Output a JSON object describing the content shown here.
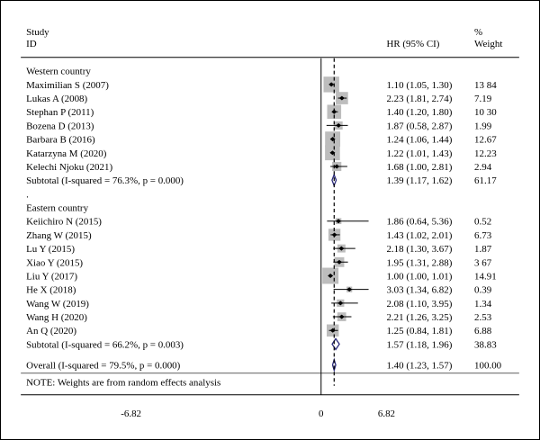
{
  "chart_data": {
    "type": "forest",
    "header": {
      "study_l1": "Study",
      "study_l2": "ID",
      "hr": "HR (95% CI)",
      "weight_l1": "%",
      "weight_l2": "Weight"
    },
    "x_axis": {
      "ticks": [
        -6.82,
        0,
        6.82
      ],
      "tick_labels": [
        "-6.82",
        "0",
        "6.82"
      ],
      "reference_line": 0
    },
    "rows": [
      {
        "kind": "group",
        "label": "Western country"
      },
      {
        "kind": "study",
        "label": "Maximilian S (2007)",
        "hr": 1.1,
        "lo": 1.05,
        "hi": 1.3,
        "hr_text": "1.10 (1.05, 1.30)",
        "weight": 13.84,
        "weight_text": "13 84"
      },
      {
        "kind": "study",
        "label": "Lukas A (2008)",
        "hr": 2.23,
        "lo": 1.81,
        "hi": 2.74,
        "hr_text": "2.23 (1.81, 2.74)",
        "weight": 7.19,
        "weight_text": "7.19"
      },
      {
        "kind": "study",
        "label": "Stephan P (2011)",
        "hr": 1.4,
        "lo": 1.2,
        "hi": 1.8,
        "hr_text": "1.40 (1.20, 1.80)",
        "weight": 10.3,
        "weight_text": "10 30"
      },
      {
        "kind": "study",
        "label": "Bozena D (2013)",
        "hr": 1.87,
        "lo": 0.58,
        "hi": 2.87,
        "hr_text": "1.87 (0.58, 2.87)",
        "weight": 1.99,
        "weight_text": "1.99"
      },
      {
        "kind": "study",
        "label": "Barbara B (2016)",
        "hr": 1.24,
        "lo": 1.06,
        "hi": 1.44,
        "hr_text": "1.24 (1.06, 1.44)",
        "weight": 12.67,
        "weight_text": "12.67"
      },
      {
        "kind": "study",
        "label": "Katarzyna M (2020)",
        "hr": 1.22,
        "lo": 1.01,
        "hi": 1.43,
        "hr_text": "1.22 (1.01, 1.43)",
        "weight": 12.23,
        "weight_text": "12.23"
      },
      {
        "kind": "study",
        "label": "Kelechi Njoku (2021)",
        "hr": 1.68,
        "lo": 1.0,
        "hi": 2.81,
        "hr_text": "1.68 (1.00, 2.81)",
        "weight": 2.94,
        "weight_text": "2.94"
      },
      {
        "kind": "subtotal",
        "label": "Subtotal (I-squared = 76.3%, p = 0.000)",
        "hr": 1.39,
        "lo": 1.17,
        "hi": 1.62,
        "hr_text": "1.39 (1.17, 1.62)",
        "weight": 61.17,
        "weight_text": "61.17"
      },
      {
        "kind": "blank",
        "label": "."
      },
      {
        "kind": "group",
        "label": "Eastern country"
      },
      {
        "kind": "study",
        "label": "Keiichiro N (2015)",
        "hr": 1.86,
        "lo": 0.64,
        "hi": 5.36,
        "hr_text": "1.86 (0.64, 5.36)",
        "weight": 0.52,
        "weight_text": "0.52"
      },
      {
        "kind": "study",
        "label": "Zhang W (2015)",
        "hr": 1.43,
        "lo": 1.02,
        "hi": 2.01,
        "hr_text": "1.43 (1.02, 2.01)",
        "weight": 6.73,
        "weight_text": "6.73"
      },
      {
        "kind": "study",
        "label": "Lu Y (2015)",
        "hr": 2.18,
        "lo": 1.3,
        "hi": 3.67,
        "hr_text": "2.18 (1.30, 3.67)",
        "weight": 1.87,
        "weight_text": "1.87"
      },
      {
        "kind": "study",
        "label": "Xiao Y (2015)",
        "hr": 1.95,
        "lo": 1.31,
        "hi": 2.88,
        "hr_text": "1.95 (1.31, 2.88)",
        "weight": 3.67,
        "weight_text": "3 67"
      },
      {
        "kind": "study",
        "label": "Liu Y (2017)",
        "hr": 1.0,
        "lo": 1.0,
        "hi": 1.01,
        "hr_text": "1.00 (1.00, 1.01)",
        "weight": 14.91,
        "weight_text": "14.91"
      },
      {
        "kind": "study",
        "label": "He X (2018)",
        "hr": 3.03,
        "lo": 1.34,
        "hi": 6.82,
        "hr_text": "3.03 (1.34, 6.82)",
        "weight": 0.39,
        "weight_text": "0.39"
      },
      {
        "kind": "study",
        "label": "Wang W (2019)",
        "hr": 2.08,
        "lo": 1.1,
        "hi": 3.95,
        "hr_text": "2.08 (1.10, 3.95)",
        "weight": 1.34,
        "weight_text": "1.34"
      },
      {
        "kind": "study",
        "label": "Wang H (2020)",
        "hr": 2.21,
        "lo": 1.26,
        "hi": 3.25,
        "hr_text": "2.21 (1.26, 3.25)",
        "weight": 2.53,
        "weight_text": "2.53"
      },
      {
        "kind": "study",
        "label": "An Q (2020)",
        "hr": 1.25,
        "lo": 0.84,
        "hi": 1.81,
        "hr_text": "1.25 (0.84, 1.81)",
        "weight": 6.88,
        "weight_text": "6.88"
      },
      {
        "kind": "subtotal",
        "label": "Subtotal (I-squared = 66.2%, p = 0.003)",
        "hr": 1.57,
        "lo": 1.18,
        "hi": 1.96,
        "hr_text": "1.57 (1.18, 1.96)",
        "weight": 38.83,
        "weight_text": "38.83"
      },
      {
        "kind": "gap"
      },
      {
        "kind": "overall",
        "label": "Overall (I-squared = 79.5%, p = 0.000)",
        "hr": 1.4,
        "lo": 1.23,
        "hi": 1.57,
        "hr_text": "1.40 (1.23, 1.57)",
        "weight": 100.0,
        "weight_text": "100.00"
      }
    ],
    "note": "NOTE: Weights are from random effects analysis"
  }
}
